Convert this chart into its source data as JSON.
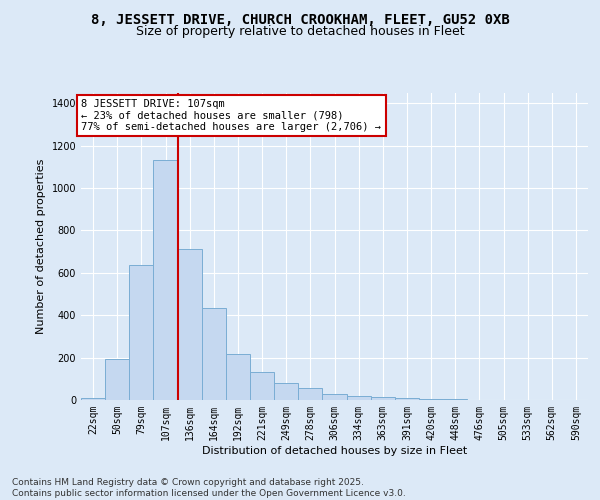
{
  "title1": "8, JESSETT DRIVE, CHURCH CROOKHAM, FLEET, GU52 0XB",
  "title2": "Size of property relative to detached houses in Fleet",
  "xlabel": "Distribution of detached houses by size in Fleet",
  "ylabel": "Number of detached properties",
  "footnote": "Contains HM Land Registry data © Crown copyright and database right 2025.\nContains public sector information licensed under the Open Government Licence v3.0.",
  "categories": [
    "22sqm",
    "50sqm",
    "79sqm",
    "107sqm",
    "136sqm",
    "164sqm",
    "192sqm",
    "221sqm",
    "249sqm",
    "278sqm",
    "306sqm",
    "334sqm",
    "363sqm",
    "391sqm",
    "420sqm",
    "448sqm",
    "476sqm",
    "505sqm",
    "533sqm",
    "562sqm",
    "590sqm"
  ],
  "values": [
    10,
    195,
    635,
    1130,
    710,
    435,
    215,
    130,
    80,
    55,
    30,
    20,
    15,
    8,
    5,
    3,
    2,
    1,
    1,
    0,
    0
  ],
  "bar_color": "#c5d8f0",
  "bar_edge_color": "#7aadd4",
  "ref_line_color": "#cc0000",
  "ref_bar_index": 3,
  "annotation_text": "8 JESSETT DRIVE: 107sqm\n← 23% of detached houses are smaller (798)\n77% of semi-detached houses are larger (2,706) →",
  "annotation_box_color": "#cc0000",
  "annotation_fill": "white",
  "ylim": [
    0,
    1450
  ],
  "yticks": [
    0,
    200,
    400,
    600,
    800,
    1000,
    1200,
    1400
  ],
  "background_color": "#dce9f7",
  "plot_bg_color": "#dce9f7",
  "title1_fontsize": 10,
  "title2_fontsize": 9,
  "axis_label_fontsize": 8,
  "tick_fontsize": 7,
  "footnote_fontsize": 6.5,
  "annotation_fontsize": 7.5
}
